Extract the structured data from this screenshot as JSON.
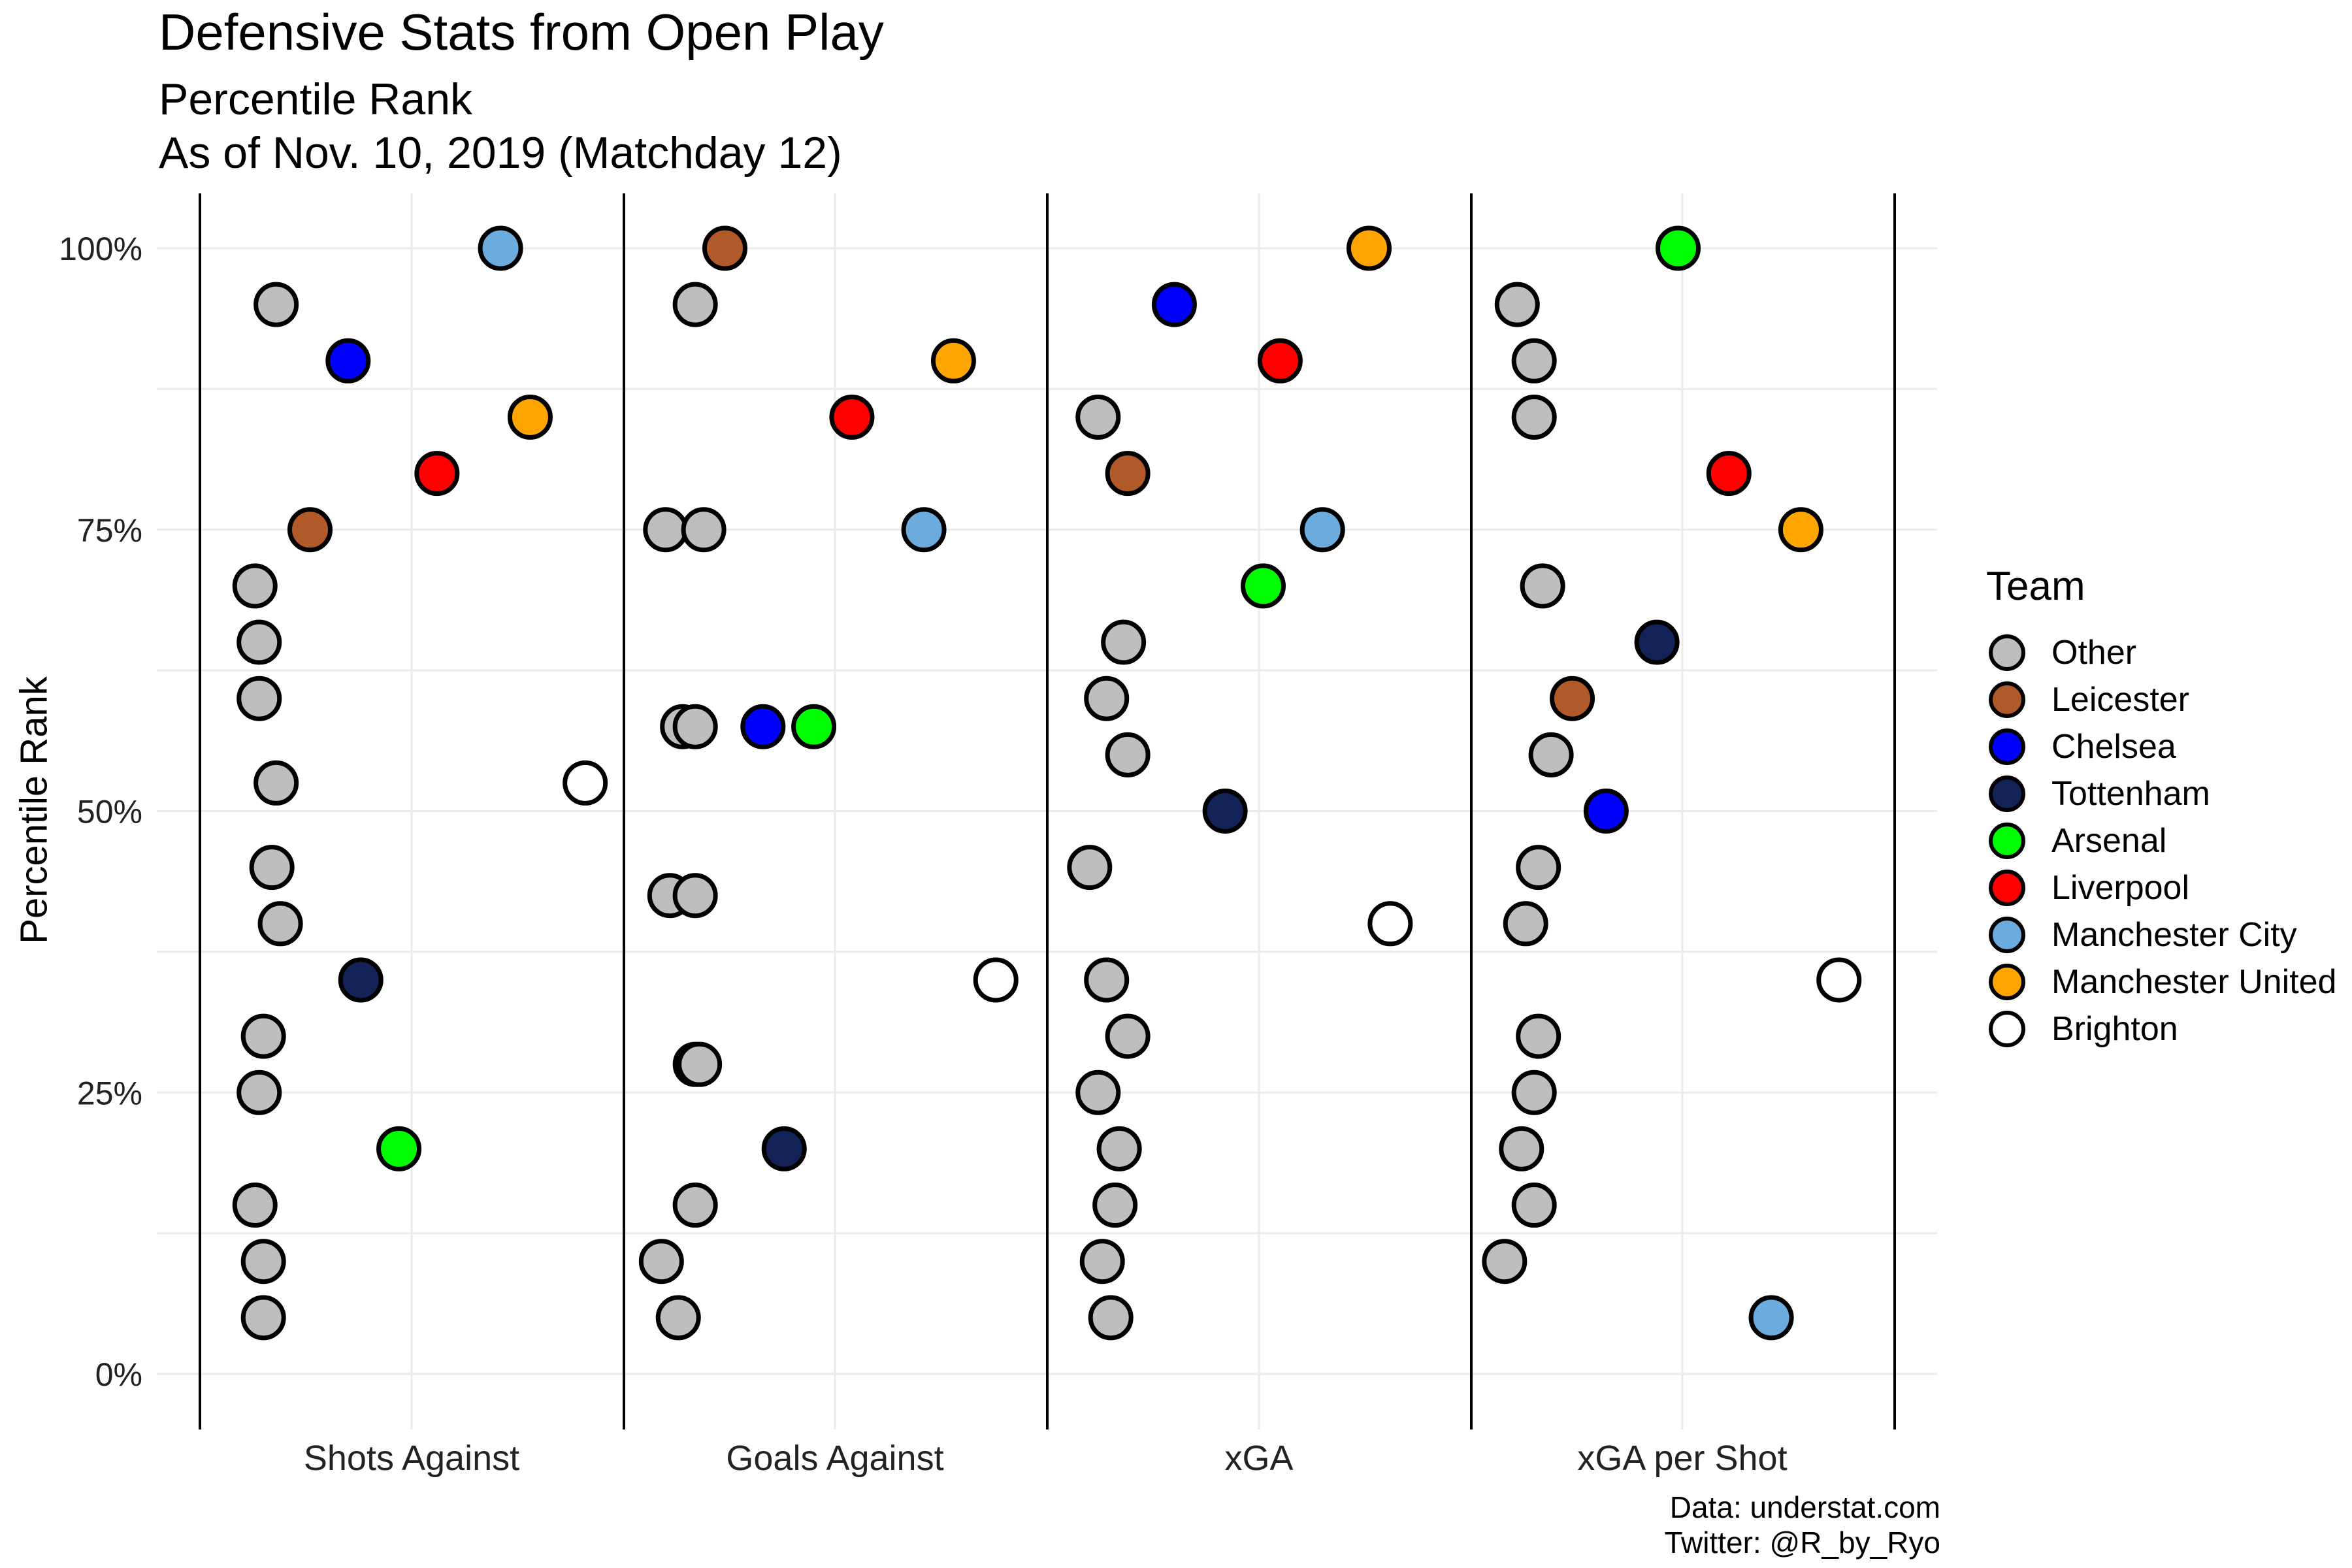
{
  "title": "Defensive Stats from Open Play",
  "subtitle_line1": "Percentile Rank",
  "subtitle_line2": "As of Nov. 10, 2019 (Matchday 12)",
  "caption_line1": "Data: understat.com",
  "caption_line2": "Twitter: @R_by_Ryo",
  "chart_data": {
    "type": "scatter",
    "ylabel": "Percentile Rank",
    "xlabel": "",
    "ylim": [
      0,
      100
    ],
    "yticks": [
      0,
      25,
      50,
      75,
      100
    ],
    "ytick_labels": [
      "0%",
      "25%",
      "50%",
      "75%",
      "100%"
    ],
    "categories": [
      "Shots Against",
      "Goals Against",
      "xGA",
      "xGA per Shot"
    ],
    "grid": true,
    "legend_title": "Team",
    "legend_position": "right",
    "teams": [
      {
        "name": "Other",
        "color": "#BEBEBE"
      },
      {
        "name": "Leicester",
        "color": "#B15928"
      },
      {
        "name": "Chelsea",
        "color": "#0000FF"
      },
      {
        "name": "Tottenham",
        "color": "#132257"
      },
      {
        "name": "Arsenal",
        "color": "#00FF00"
      },
      {
        "name": "Liverpool",
        "color": "#FF0000"
      },
      {
        "name": "Manchester City",
        "color": "#6CABDD"
      },
      {
        "name": "Manchester United",
        "color": "#FFA500"
      },
      {
        "name": "Brighton",
        "color": "#FFFFFF"
      }
    ],
    "points": [
      {
        "category": "Shots Against",
        "team": "Manchester City",
        "x": 0.21,
        "y": 100
      },
      {
        "category": "Shots Against",
        "team": "Other",
        "x": -0.32,
        "y": 95
      },
      {
        "category": "Shots Against",
        "team": "Chelsea",
        "x": -0.15,
        "y": 90
      },
      {
        "category": "Shots Against",
        "team": "Manchester United",
        "x": 0.28,
        "y": 85
      },
      {
        "category": "Shots Against",
        "team": "Liverpool",
        "x": 0.06,
        "y": 80
      },
      {
        "category": "Shots Against",
        "team": "Leicester",
        "x": -0.24,
        "y": 75
      },
      {
        "category": "Shots Against",
        "team": "Other",
        "x": -0.37,
        "y": 70
      },
      {
        "category": "Shots Against",
        "team": "Other",
        "x": -0.36,
        "y": 65
      },
      {
        "category": "Shots Against",
        "team": "Other",
        "x": -0.36,
        "y": 60
      },
      {
        "category": "Shots Against",
        "team": "Brighton",
        "x": 0.41,
        "y": 52.5
      },
      {
        "category": "Shots Against",
        "team": "Other",
        "x": -0.32,
        "y": 52.5
      },
      {
        "category": "Shots Against",
        "team": "Other",
        "x": -0.33,
        "y": 45
      },
      {
        "category": "Shots Against",
        "team": "Other",
        "x": -0.31,
        "y": 40
      },
      {
        "category": "Shots Against",
        "team": "Tottenham",
        "x": -0.12,
        "y": 35
      },
      {
        "category": "Shots Against",
        "team": "Other",
        "x": -0.35,
        "y": 30
      },
      {
        "category": "Shots Against",
        "team": "Other",
        "x": -0.36,
        "y": 25
      },
      {
        "category": "Shots Against",
        "team": "Arsenal",
        "x": -0.03,
        "y": 20
      },
      {
        "category": "Shots Against",
        "team": "Other",
        "x": -0.37,
        "y": 15
      },
      {
        "category": "Shots Against",
        "team": "Other",
        "x": -0.35,
        "y": 10
      },
      {
        "category": "Shots Against",
        "team": "Other",
        "x": -0.35,
        "y": 5
      },
      {
        "category": "Goals Against",
        "team": "Leicester",
        "x": -0.26,
        "y": 100
      },
      {
        "category": "Goals Against",
        "team": "Other",
        "x": -0.33,
        "y": 95
      },
      {
        "category": "Goals Against",
        "team": "Manchester United",
        "x": 0.28,
        "y": 90
      },
      {
        "category": "Goals Against",
        "team": "Liverpool",
        "x": 0.04,
        "y": 85
      },
      {
        "category": "Goals Against",
        "team": "Other",
        "x": -0.4,
        "y": 75
      },
      {
        "category": "Goals Against",
        "team": "Other",
        "x": -0.31,
        "y": 75
      },
      {
        "category": "Goals Against",
        "team": "Manchester City",
        "x": 0.21,
        "y": 75
      },
      {
        "category": "Goals Against",
        "team": "Other",
        "x": -0.36,
        "y": 57.5
      },
      {
        "category": "Goals Against",
        "team": "Other",
        "x": -0.33,
        "y": 57.5
      },
      {
        "category": "Goals Against",
        "team": "Chelsea",
        "x": -0.17,
        "y": 57.5
      },
      {
        "category": "Goals Against",
        "team": "Arsenal",
        "x": -0.05,
        "y": 57.5
      },
      {
        "category": "Goals Against",
        "team": "Other",
        "x": -0.39,
        "y": 42.5
      },
      {
        "category": "Goals Against",
        "team": "Other",
        "x": -0.33,
        "y": 42.5
      },
      {
        "category": "Goals Against",
        "team": "Brighton",
        "x": 0.38,
        "y": 35
      },
      {
        "category": "Goals Against",
        "team": "Other",
        "x": -0.33,
        "y": 27.5
      },
      {
        "category": "Goals Against",
        "team": "Other",
        "x": -0.32,
        "y": 27.5
      },
      {
        "category": "Goals Against",
        "team": "Tottenham",
        "x": -0.12,
        "y": 20
      },
      {
        "category": "Goals Against",
        "team": "Other",
        "x": -0.33,
        "y": 15
      },
      {
        "category": "Goals Against",
        "team": "Other",
        "x": -0.41,
        "y": 10
      },
      {
        "category": "Goals Against",
        "team": "Other",
        "x": -0.37,
        "y": 5
      },
      {
        "category": "xGA",
        "team": "Manchester United",
        "x": 0.26,
        "y": 100
      },
      {
        "category": "xGA",
        "team": "Chelsea",
        "x": -0.2,
        "y": 95
      },
      {
        "category": "xGA",
        "team": "Liverpool",
        "x": 0.05,
        "y": 90
      },
      {
        "category": "xGA",
        "team": "Other",
        "x": -0.38,
        "y": 85
      },
      {
        "category": "xGA",
        "team": "Leicester",
        "x": -0.31,
        "y": 80
      },
      {
        "category": "xGA",
        "team": "Manchester City",
        "x": 0.15,
        "y": 75
      },
      {
        "category": "xGA",
        "team": "Arsenal",
        "x": 0.01,
        "y": 70
      },
      {
        "category": "xGA",
        "team": "Other",
        "x": -0.32,
        "y": 65
      },
      {
        "category": "xGA",
        "team": "Other",
        "x": -0.36,
        "y": 60
      },
      {
        "category": "xGA",
        "team": "Other",
        "x": -0.31,
        "y": 55
      },
      {
        "category": "xGA",
        "team": "Tottenham",
        "x": -0.08,
        "y": 50
      },
      {
        "category": "xGA",
        "team": "Other",
        "x": -0.4,
        "y": 45
      },
      {
        "category": "xGA",
        "team": "Brighton",
        "x": 0.31,
        "y": 40
      },
      {
        "category": "xGA",
        "team": "Other",
        "x": -0.36,
        "y": 35
      },
      {
        "category": "xGA",
        "team": "Other",
        "x": -0.31,
        "y": 30
      },
      {
        "category": "xGA",
        "team": "Other",
        "x": -0.38,
        "y": 25
      },
      {
        "category": "xGA",
        "team": "Other",
        "x": -0.33,
        "y": 20
      },
      {
        "category": "xGA",
        "team": "Other",
        "x": -0.34,
        "y": 15
      },
      {
        "category": "xGA",
        "team": "Other",
        "x": -0.37,
        "y": 10
      },
      {
        "category": "xGA",
        "team": "Other",
        "x": -0.35,
        "y": 5
      },
      {
        "category": "xGA per Shot",
        "team": "Arsenal",
        "x": -0.01,
        "y": 100
      },
      {
        "category": "xGA per Shot",
        "team": "Other",
        "x": -0.39,
        "y": 95
      },
      {
        "category": "xGA per Shot",
        "team": "Other",
        "x": -0.35,
        "y": 90
      },
      {
        "category": "xGA per Shot",
        "team": "Other",
        "x": -0.35,
        "y": 85
      },
      {
        "category": "xGA per Shot",
        "team": "Liverpool",
        "x": 0.11,
        "y": 80
      },
      {
        "category": "xGA per Shot",
        "team": "Manchester United",
        "x": 0.28,
        "y": 75
      },
      {
        "category": "xGA per Shot",
        "team": "Other",
        "x": -0.33,
        "y": 70
      },
      {
        "category": "xGA per Shot",
        "team": "Tottenham",
        "x": -0.06,
        "y": 65
      },
      {
        "category": "xGA per Shot",
        "team": "Leicester",
        "x": -0.26,
        "y": 60
      },
      {
        "category": "xGA per Shot",
        "team": "Other",
        "x": -0.31,
        "y": 55
      },
      {
        "category": "xGA per Shot",
        "team": "Chelsea",
        "x": -0.18,
        "y": 50
      },
      {
        "category": "xGA per Shot",
        "team": "Other",
        "x": -0.34,
        "y": 45
      },
      {
        "category": "xGA per Shot",
        "team": "Other",
        "x": -0.37,
        "y": 40
      },
      {
        "category": "xGA per Shot",
        "team": "Brighton",
        "x": 0.37,
        "y": 35
      },
      {
        "category": "xGA per Shot",
        "team": "Other",
        "x": -0.34,
        "y": 30
      },
      {
        "category": "xGA per Shot",
        "team": "Other",
        "x": -0.35,
        "y": 25
      },
      {
        "category": "xGA per Shot",
        "team": "Other",
        "x": -0.38,
        "y": 20
      },
      {
        "category": "xGA per Shot",
        "team": "Other",
        "x": -0.35,
        "y": 15
      },
      {
        "category": "xGA per Shot",
        "team": "Other",
        "x": -0.42,
        "y": 10
      },
      {
        "category": "xGA per Shot",
        "team": "Manchester City",
        "x": 0.21,
        "y": 5
      }
    ]
  }
}
